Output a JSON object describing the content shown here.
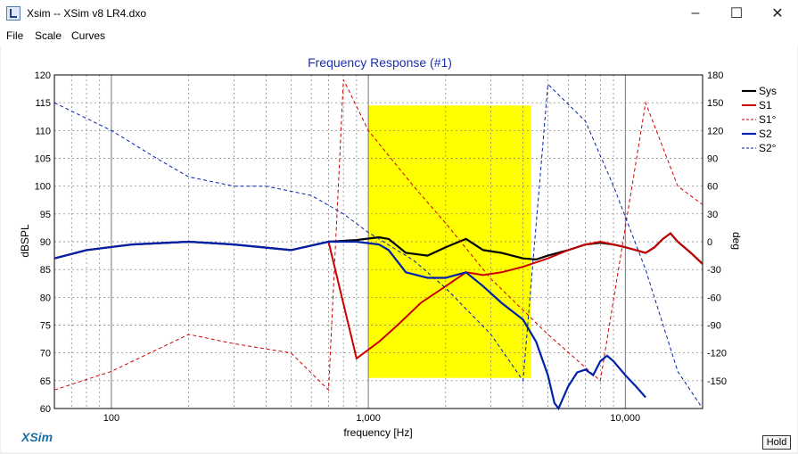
{
  "window": {
    "title": "Xsim -- XSim v8 LR4.dxo",
    "minimize_icon": "minimize-icon",
    "maximize_icon": "maximize-icon",
    "close_icon": "close-icon"
  },
  "menu": [
    "File",
    "Scale",
    "Curves"
  ],
  "brand": "XSim",
  "hold_label": "Hold",
  "chart_data": {
    "type": "line",
    "title": "Frequency Response (#1)",
    "xlabel": "frequency [Hz]",
    "ylabel": "dBSPL",
    "y2label": "deg",
    "xscale": "log",
    "xlim": [
      60,
      20000
    ],
    "ylim": [
      60,
      120
    ],
    "y2lim": [
      -180,
      180
    ],
    "x_tick_labels": [
      "100",
      "1,000",
      "10,000"
    ],
    "x_tick_values": [
      100,
      1000,
      10000
    ],
    "y_ticks": [
      60,
      65,
      70,
      75,
      80,
      85,
      90,
      95,
      100,
      105,
      110,
      115,
      120
    ],
    "y2_ticks": [
      -150,
      -120,
      -90,
      -60,
      -30,
      0,
      30,
      60,
      90,
      120,
      150,
      180
    ],
    "grid": true,
    "legend_position": "top-right",
    "highlight_region": {
      "x": [
        1000,
        4300
      ],
      "y": [
        65.5,
        114.5
      ],
      "color": "#ffff00"
    },
    "series": [
      {
        "name": "Sys",
        "color": "#000000",
        "style": "solid",
        "width": 2.2,
        "axis": "left",
        "x": [
          60,
          80,
          120,
          200,
          300,
          500,
          700,
          900,
          1100,
          1200,
          1400,
          1700,
          2000,
          2400,
          2800,
          3300,
          4000,
          4500,
          5000,
          6000,
          7000,
          8000,
          9000,
          10000,
          11000,
          12000,
          13000,
          14000,
          15000,
          16000,
          18000,
          20000
        ],
        "y": [
          87,
          88.5,
          89.5,
          90,
          89.5,
          88.5,
          90,
          90.3,
          90.8,
          90.5,
          88,
          87.5,
          89,
          90.5,
          88.5,
          88,
          87,
          86.8,
          87.5,
          88.5,
          89.5,
          89.8,
          89.5,
          89,
          88.5,
          88,
          89,
          90.5,
          91.5,
          90,
          88,
          86
        ]
      },
      {
        "name": "S1",
        "color": "#cc0000",
        "style": "solid",
        "width": 2.0,
        "axis": "left",
        "x": [
          60,
          80,
          120,
          200,
          300,
          500,
          700,
          900,
          1100,
          1300,
          1600,
          2000,
          2400,
          2800,
          3300,
          4000,
          5000,
          6000,
          7000,
          8000,
          9000,
          10000,
          11000,
          12000,
          13000,
          14000,
          15000,
          16000,
          18000,
          20000
        ],
        "y": [
          87,
          88.5,
          89.5,
          90,
          89.5,
          88.5,
          90,
          69,
          72,
          75,
          79,
          82,
          84.5,
          84,
          84.5,
          85.5,
          87,
          88.5,
          89.5,
          90,
          89.5,
          89,
          88.5,
          88,
          89,
          90.5,
          91.5,
          90,
          88,
          86
        ]
      },
      {
        "name": "S1°",
        "color": "#cc0000",
        "style": "dashed",
        "width": 1.0,
        "axis": "right",
        "x": [
          60,
          100,
          200,
          300,
          500,
          700,
          800,
          1000,
          1500,
          2000,
          3000,
          5000,
          8000,
          12000,
          16000,
          20000
        ],
        "y": [
          -160,
          -140,
          -100,
          -110,
          -120,
          -160,
          175,
          120,
          60,
          20,
          -40,
          -100,
          -150,
          150,
          60,
          40
        ]
      },
      {
        "name": "S2",
        "color": "#0022aa",
        "style": "solid",
        "width": 2.2,
        "axis": "left",
        "x": [
          60,
          80,
          120,
          200,
          300,
          500,
          700,
          900,
          1100,
          1200,
          1400,
          1700,
          2000,
          2400,
          2800,
          3300,
          4000,
          4500,
          5000,
          5300,
          5500,
          6000,
          6500,
          7000,
          7500,
          8000,
          8500,
          9000,
          10000,
          11000,
          12000
        ],
        "y": [
          87,
          88.5,
          89.5,
          90,
          89.5,
          88.5,
          90,
          90,
          89.5,
          88.5,
          84.5,
          83.5,
          83.5,
          84.5,
          82,
          79,
          76,
          72,
          66,
          61,
          58,
          64,
          66.5,
          67,
          66,
          68.5,
          69.5,
          68.5,
          66,
          64,
          62
        ]
      },
      {
        "name": "S2°",
        "color": "#0022aa",
        "style": "dashed",
        "width": 1.0,
        "axis": "right",
        "x": [
          60,
          100,
          150,
          200,
          300,
          400,
          600,
          800,
          1000,
          1500,
          2000,
          3000,
          4000,
          5000,
          7000,
          9000,
          12000,
          16000,
          20000
        ],
        "y": [
          150,
          120,
          90,
          70,
          60,
          60,
          50,
          30,
          10,
          -20,
          -50,
          -100,
          -150,
          170,
          130,
          60,
          -30,
          -140,
          -180
        ]
      }
    ]
  }
}
